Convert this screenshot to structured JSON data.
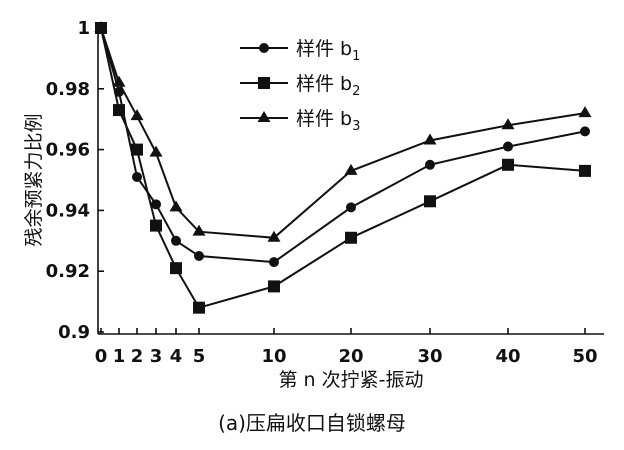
{
  "chart_data": {
    "type": "line",
    "ylabel": "残余预紧力比例",
    "xlabel": "第 n 次拧紧-振动",
    "caption": "(a)压扁收口自锁螺母",
    "xlim": [
      0,
      50
    ],
    "ylim": [
      0.9,
      1.0
    ],
    "x_ticks": [
      0,
      1,
      2,
      3,
      4,
      5,
      10,
      20,
      30,
      40,
      50
    ],
    "y_ticks": [
      {
        "value": 0.9,
        "label": "0.9"
      },
      {
        "value": 0.92,
        "label": "0.92"
      },
      {
        "value": 0.94,
        "label": "0.94"
      },
      {
        "value": 0.96,
        "label": "0.96"
      },
      {
        "value": 0.98,
        "label": "0.98"
      },
      {
        "value": 1.0,
        "label": "1"
      }
    ],
    "legend_position": "top-center",
    "series": [
      {
        "name": "样件 b",
        "subscript": "1",
        "marker": "circle",
        "x": [
          0,
          1,
          2,
          3,
          4,
          5,
          10,
          20,
          30,
          40,
          50
        ],
        "y": [
          1.0,
          0.979,
          0.951,
          0.942,
          0.93,
          0.925,
          0.923,
          0.941,
          0.955,
          0.961,
          0.966
        ]
      },
      {
        "name": "样件 b",
        "subscript": "2",
        "marker": "square",
        "x": [
          0,
          1,
          2,
          3,
          4,
          5,
          10,
          20,
          30,
          40,
          50
        ],
        "y": [
          1.0,
          0.973,
          0.96,
          0.935,
          0.921,
          0.908,
          0.915,
          0.931,
          0.943,
          0.955,
          0.953
        ]
      },
      {
        "name": "样件 b",
        "subscript": "3",
        "marker": "triangle",
        "x": [
          0,
          1,
          2,
          3,
          4,
          5,
          10,
          20,
          30,
          40,
          50
        ],
        "y": [
          1.0,
          0.982,
          0.971,
          0.959,
          0.941,
          0.933,
          0.931,
          0.953,
          0.963,
          0.968,
          0.972
        ]
      }
    ]
  }
}
